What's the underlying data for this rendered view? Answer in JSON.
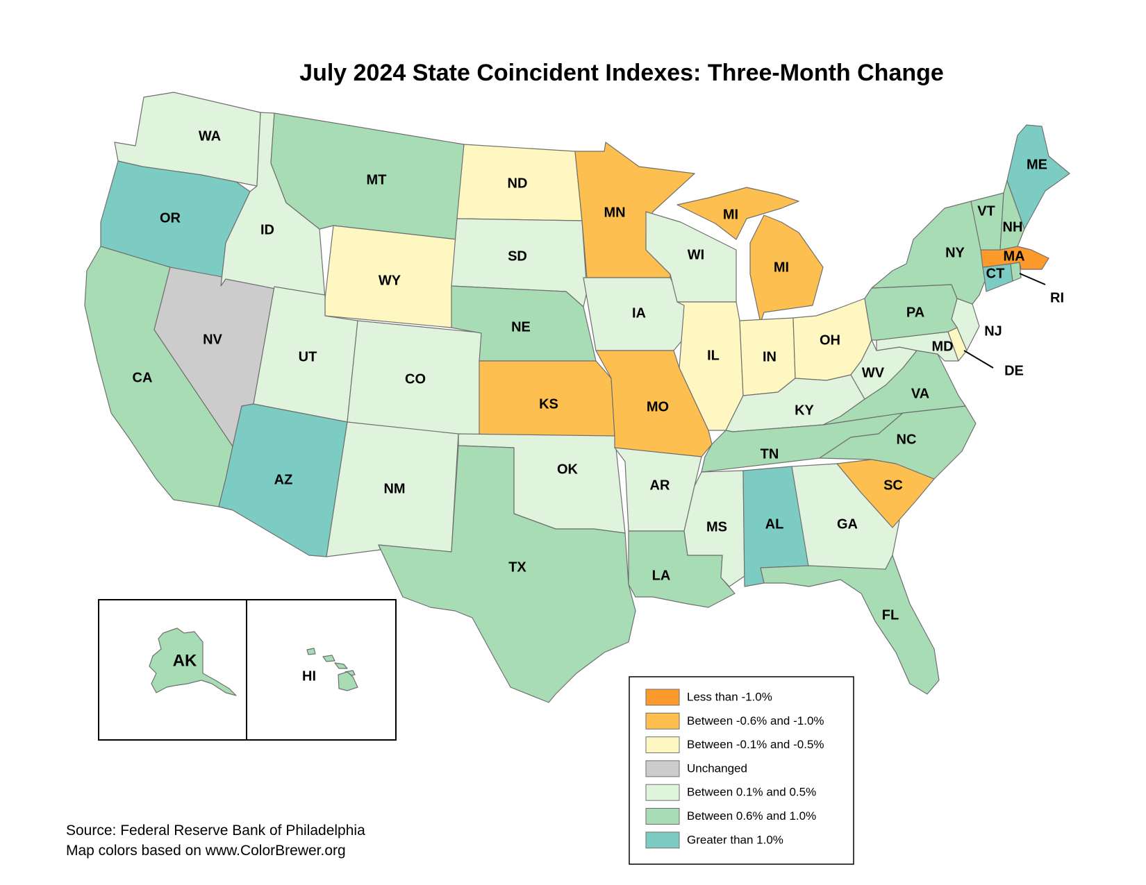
{
  "title": "July 2024 State Coincident Indexes: Three-Month Change",
  "legend": [
    {
      "key": "lt_neg1",
      "label": "Less than -1.0%",
      "color": "#fd9a2c"
    },
    {
      "key": "neg06_neg10",
      "label": "Between -0.6% and -1.0%",
      "color": "#fdbf50"
    },
    {
      "key": "neg01_neg05",
      "label": "Between -0.1% and -0.5%",
      "color": "#fff7c2"
    },
    {
      "key": "unchanged",
      "label": "Unchanged",
      "color": "#cccccc"
    },
    {
      "key": "pos01_05",
      "label": "Between 0.1% and 0.5%",
      "color": "#e0f3dc"
    },
    {
      "key": "pos06_10",
      "label": "Between 0.6% and 1.0%",
      "color": "#a8dcb5"
    },
    {
      "key": "gt1",
      "label": "Greater than 1.0%",
      "color": "#7cccc4"
    }
  ],
  "states": {
    "WA": "pos01_05",
    "OR": "gt1",
    "CA": "pos06_10",
    "NV": "unchanged",
    "ID": "pos01_05",
    "MT": "pos06_10",
    "WY": "neg01_neg05",
    "UT": "pos01_05",
    "AZ": "gt1",
    "CO": "pos01_05",
    "NM": "pos01_05",
    "ND": "neg01_neg05",
    "SD": "pos01_05",
    "NE": "pos06_10",
    "KS": "neg06_neg10",
    "OK": "pos01_05",
    "TX": "pos06_10",
    "MN": "neg06_neg10",
    "IA": "pos01_05",
    "MO": "neg06_neg10",
    "AR": "pos01_05",
    "LA": "pos06_10",
    "WI": "pos01_05",
    "IL": "neg01_neg05",
    "MI": "neg06_neg10",
    "IN": "neg01_neg05",
    "OH": "neg01_neg05",
    "KY": "pos01_05",
    "TN": "pos06_10",
    "MS": "pos01_05",
    "AL": "gt1",
    "GA": "pos01_05",
    "FL": "pos06_10",
    "SC": "neg06_neg10",
    "NC": "pos06_10",
    "VA": "pos06_10",
    "WV": "pos01_05",
    "MD": "pos01_05",
    "DE": "neg01_neg05",
    "NJ": "pos01_05",
    "PA": "pos06_10",
    "NY": "pos06_10",
    "CT": "gt1",
    "RI": "pos06_10",
    "MA": "lt_neg1",
    "VT": "pos06_10",
    "NH": "pos06_10",
    "ME": "gt1",
    "AK": "pos06_10",
    "HI": "pos06_10"
  },
  "labels": {
    "WA": "WA",
    "OR": "OR",
    "CA": "CA",
    "NV": "NV",
    "ID": "ID",
    "MT": "MT",
    "WY": "WY",
    "UT": "UT",
    "AZ": "AZ",
    "CO": "CO",
    "NM": "NM",
    "ND": "ND",
    "SD": "SD",
    "NE": "NE",
    "KS": "KS",
    "OK": "OK",
    "TX": "TX",
    "MN": "MN",
    "IA": "IA",
    "MO": "MO",
    "AR": "AR",
    "LA": "LA",
    "WI": "WI",
    "IL": "IL",
    "MI_UP": "MI",
    "MI_LP": "MI",
    "IN": "IN",
    "OH": "OH",
    "KY": "KY",
    "TN": "TN",
    "MS": "MS",
    "AL": "AL",
    "GA": "GA",
    "FL": "FL",
    "SC": "SC",
    "NC": "NC",
    "VA": "VA",
    "WV": "WV",
    "MD": "MD",
    "DE": "DE",
    "NJ": "NJ",
    "PA": "PA",
    "NY": "NY",
    "CT": "CT",
    "RI": "RI",
    "MA": "MA",
    "VT": "VT",
    "NH": "NH",
    "ME": "ME",
    "AK": "AK",
    "HI": "HI"
  },
  "source_lines": [
    "Source: Federal Reserve Bank of Philadelphia",
    "Map colors based on www.ColorBrewer.org"
  ]
}
